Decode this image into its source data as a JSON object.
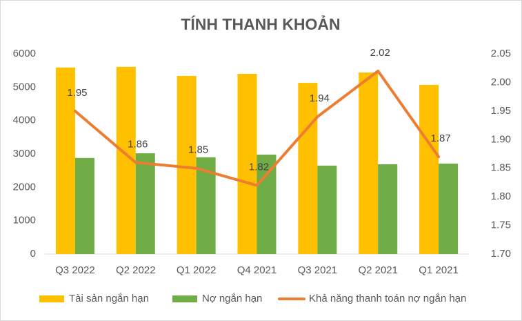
{
  "chart_data": {
    "type": "bar-line",
    "title": "TÍNH THANH KHOẢN",
    "categories": [
      "Q3 2022",
      "Q2 2022",
      "Q1 2022",
      "Q4 2021",
      "Q3 2021",
      "Q2 2021",
      "Q1 2021"
    ],
    "series": [
      {
        "name": "Tài sản ngắn hạn",
        "color": "#FFC000",
        "type": "bar",
        "values": [
          5590,
          5610,
          5340,
          5400,
          5130,
          5440,
          5070
        ]
      },
      {
        "name": "Nợ ngắn hạn",
        "color": "#70AD47",
        "type": "bar",
        "values": [
          2880,
          3020,
          2900,
          2980,
          2650,
          2690,
          2710
        ]
      },
      {
        "name": "Khả năng thanh toán nợ ngắn hạn",
        "color": "#ED7D31",
        "type": "line",
        "axis": "y2",
        "values": [
          1.95,
          1.86,
          1.85,
          1.82,
          1.94,
          2.02,
          1.87
        ]
      }
    ],
    "ylim": [
      0,
      6000
    ],
    "yticks": [
      0,
      1000,
      2000,
      3000,
      4000,
      5000,
      6000
    ],
    "y2lim": [
      1.7,
      2.05
    ],
    "y2ticks": [
      {
        "value": 1.7,
        "label": "1.70"
      },
      1.75,
      {
        "value": 1.8,
        "label": "1.80"
      },
      1.85,
      {
        "value": 1.9,
        "label": "1.90"
      },
      1.95,
      {
        "value": 2.0,
        "label": "2.00"
      },
      2.05
    ],
    "legend": "bottom",
    "grid": false
  }
}
